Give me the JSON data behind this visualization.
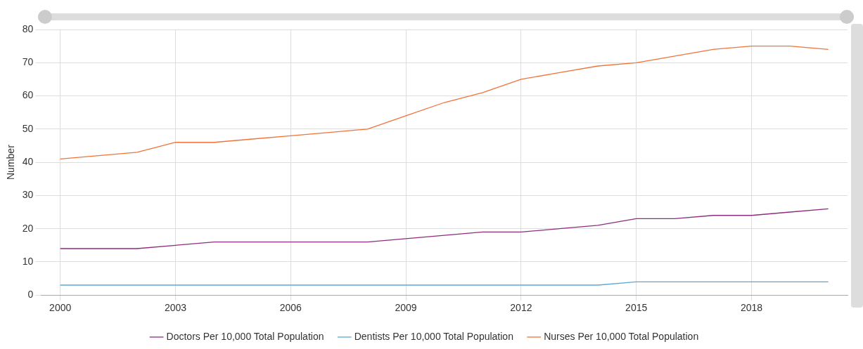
{
  "chart_data": {
    "type": "line",
    "ylabel": "Number",
    "x": [
      2000,
      2001,
      2002,
      2003,
      2004,
      2005,
      2006,
      2007,
      2008,
      2009,
      2010,
      2011,
      2012,
      2013,
      2014,
      2015,
      2016,
      2017,
      2018,
      2019,
      2020
    ],
    "xlim": [
      1999.5,
      2020.5
    ],
    "xticks": [
      2000,
      2003,
      2006,
      2009,
      2012,
      2015,
      2018
    ],
    "ylim": [
      0,
      80
    ],
    "yticks": [
      0,
      10,
      20,
      30,
      40,
      50,
      60,
      70,
      80
    ],
    "grid": true,
    "legend": "bottom",
    "marker": "none",
    "line_style": "solid",
    "series": [
      {
        "name": "Doctors Per 10,000 Total Population",
        "color": "#8e2c7e",
        "values": [
          14,
          14,
          14,
          15,
          16,
          16,
          16,
          16,
          16,
          17,
          18,
          19,
          19,
          20,
          21,
          23,
          23,
          24,
          24,
          25,
          26
        ]
      },
      {
        "name": "Dentists Per 10,000 Total Population",
        "color": "#5ba8d8",
        "values": [
          3,
          3,
          3,
          3,
          3,
          3,
          3,
          3,
          3,
          3,
          3,
          3,
          3,
          3,
          3,
          4,
          4,
          4,
          4,
          4,
          4
        ]
      },
      {
        "name": "Nurses Per 10,000 Total Population",
        "color": "#f0733a",
        "values": [
          41,
          42,
          43,
          46,
          46,
          47,
          48,
          49,
          50,
          54,
          58,
          61,
          65,
          67,
          69,
          70,
          72,
          74,
          75,
          75,
          74
        ]
      }
    ]
  }
}
